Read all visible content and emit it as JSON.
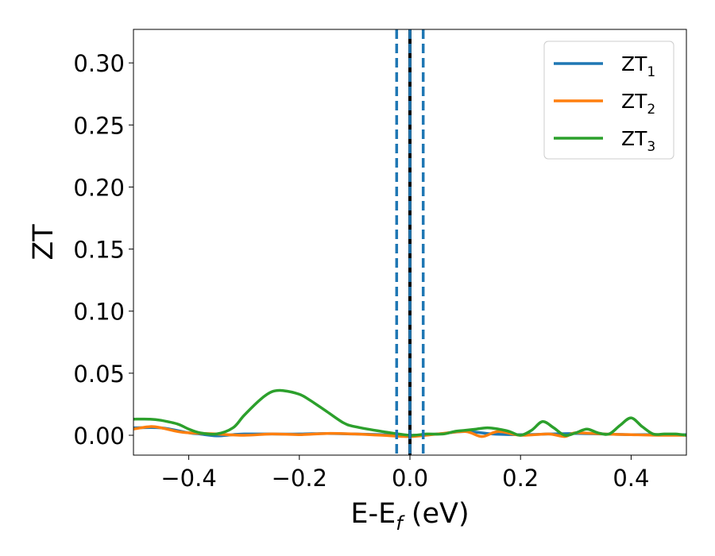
{
  "chart_data": {
    "type": "line",
    "xlabel_main": "E-E",
    "xlabel_sub": "f",
    "xlabel_tail": " (eV)",
    "ylabel": "ZT",
    "xlim": [
      -0.5,
      0.5
    ],
    "ylim": [
      -0.016,
      0.327
    ],
    "x_ticks": [
      -0.4,
      -0.2,
      0.0,
      0.2,
      0.4
    ],
    "x_tick_labels": [
      "−0.4",
      "−0.2",
      "0.0",
      "0.2",
      "0.4"
    ],
    "y_ticks": [
      0.0,
      0.05,
      0.1,
      0.15,
      0.2,
      0.25,
      0.3
    ],
    "y_tick_labels": [
      "0.00",
      "0.05",
      "0.10",
      "0.15",
      "0.20",
      "0.25",
      "0.30"
    ],
    "grid": false,
    "legend_placement": "top-right",
    "vertical_lines": [
      {
        "x": -0.024,
        "style": "dashed",
        "color": "#1f77b4"
      },
      {
        "x": 0.024,
        "style": "dashed",
        "color": "#1f77b4"
      },
      {
        "x": 0.0,
        "style": "solid",
        "color": "#000000"
      },
      {
        "x": 0.0,
        "style": "dashed",
        "color": "#1f77b4"
      }
    ],
    "series": [
      {
        "name": "ZT",
        "subscript": "1",
        "color": "#1f77b4",
        "x": [
          -0.5,
          -0.45,
          -0.4,
          -0.38,
          -0.35,
          -0.32,
          -0.3,
          -0.25,
          -0.2,
          -0.15,
          -0.1,
          -0.05,
          0.0,
          0.05,
          0.1,
          0.15,
          0.2,
          0.25,
          0.3,
          0.35,
          0.4,
          0.45,
          0.5
        ],
        "values": [
          0.006,
          0.006,
          0.002,
          0.001,
          -0.0005,
          0.0005,
          0.001,
          0.001,
          0.001,
          0.0015,
          0.001,
          0.0005,
          0.0,
          0.001,
          0.003,
          0.001,
          0.0005,
          0.001,
          0.0015,
          0.001,
          0.0005,
          0.0005,
          0.0005
        ]
      },
      {
        "name": "ZT",
        "subscript": "2",
        "color": "#ff7f0e",
        "x": [
          -0.5,
          -0.47,
          -0.45,
          -0.42,
          -0.4,
          -0.35,
          -0.3,
          -0.25,
          -0.2,
          -0.15,
          -0.1,
          -0.05,
          0.0,
          0.05,
          0.1,
          0.13,
          0.16,
          0.2,
          0.25,
          0.28,
          0.3,
          0.35,
          0.4,
          0.45,
          0.5
        ],
        "values": [
          0.005,
          0.007,
          0.006,
          0.003,
          0.002,
          0.001,
          0.0,
          0.001,
          0.0005,
          0.0015,
          0.001,
          0.0,
          -0.001,
          0.001,
          0.003,
          -0.001,
          0.003,
          0.0,
          0.001,
          -0.001,
          0.002,
          0.001,
          0.0005,
          0.0,
          0.0
        ]
      },
      {
        "name": "ZT",
        "subscript": "3",
        "color": "#2ca02c",
        "x": [
          -0.5,
          -0.47,
          -0.45,
          -0.42,
          -0.4,
          -0.38,
          -0.35,
          -0.32,
          -0.3,
          -0.27,
          -0.25,
          -0.23,
          -0.2,
          -0.18,
          -0.15,
          -0.12,
          -0.1,
          -0.05,
          0.0,
          0.03,
          0.06,
          0.08,
          0.1,
          0.12,
          0.14,
          0.16,
          0.18,
          0.2,
          0.22,
          0.24,
          0.26,
          0.28,
          0.3,
          0.32,
          0.34,
          0.36,
          0.38,
          0.4,
          0.42,
          0.44,
          0.46,
          0.48,
          0.5
        ],
        "values": [
          0.013,
          0.013,
          0.012,
          0.009,
          0.005,
          0.002,
          0.001,
          0.006,
          0.016,
          0.029,
          0.035,
          0.036,
          0.033,
          0.028,
          0.019,
          0.01,
          0.007,
          0.003,
          0.0,
          0.001,
          0.001,
          0.003,
          0.004,
          0.005,
          0.006,
          0.005,
          0.003,
          0.0,
          0.004,
          0.011,
          0.006,
          0.0,
          0.002,
          0.005,
          0.002,
          0.001,
          0.008,
          0.014,
          0.007,
          0.001,
          0.001,
          0.001,
          0.0
        ]
      }
    ]
  }
}
